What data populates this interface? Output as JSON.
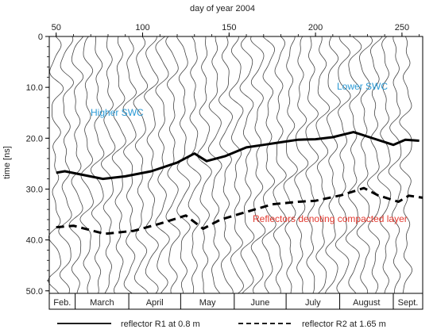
{
  "chart_data": {
    "type": "line",
    "title": "",
    "xlabel": "day of year 2004",
    "ylabel": "time [ns]",
    "xlim": [
      46,
      262
    ],
    "ylim": [
      0,
      50.5
    ],
    "y_inverted": true,
    "x_ticks": [
      "50",
      "100",
      "150",
      "200",
      "250"
    ],
    "y_ticks": [
      "0",
      "10.0",
      "20.0",
      "30.0",
      "40.0",
      "50.0"
    ],
    "months": [
      "Feb.",
      "March",
      "April",
      "May",
      "June",
      "July",
      "August",
      "Sept."
    ],
    "annotations": {
      "higher_swc": "Higher SWC",
      "lower_swc": "Lower SWC",
      "compacted": "Reflectors denoting compacted layer"
    },
    "colors": {
      "annotation_blue": "#2a9ad6",
      "annotation_red": "#e2392f",
      "trace": "#444444",
      "reflector": "#000000"
    },
    "series": [
      {
        "name": "reflector R1 at 0.8 m",
        "style": "solid",
        "x": [
          50,
          55,
          77,
          90,
          105,
          120,
          130,
          137,
          148,
          160,
          170,
          180,
          190,
          200,
          210,
          222,
          234,
          245,
          252,
          260
        ],
        "y": [
          26.8,
          26.5,
          28.0,
          27.5,
          26.5,
          24.8,
          23.0,
          24.5,
          23.5,
          21.8,
          21.3,
          20.8,
          20.3,
          20.2,
          19.8,
          18.8,
          20.1,
          21.3,
          20.3,
          20.5
        ]
      },
      {
        "name": "reflector R2 at 1.65 m",
        "style": "dashed",
        "x": [
          50,
          60,
          78,
          95,
          110,
          125,
          135,
          145,
          160,
          175,
          190,
          200,
          215,
          228,
          236,
          248,
          254,
          262
        ],
        "y": [
          37.5,
          37.2,
          38.8,
          38.2,
          36.8,
          35.2,
          37.8,
          36.0,
          34.5,
          33.0,
          32.5,
          32.3,
          31.2,
          29.8,
          31.2,
          32.5,
          31.3,
          31.7
        ]
      }
    ]
  }
}
